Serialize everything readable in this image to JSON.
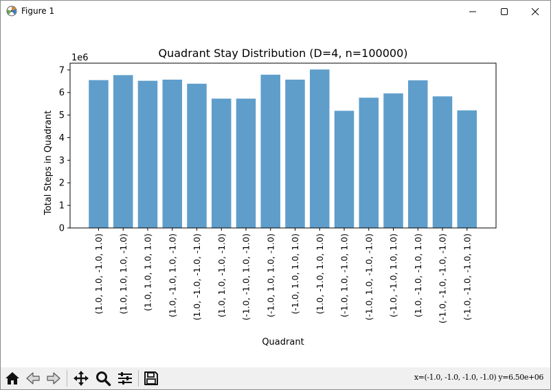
{
  "window": {
    "title": "Figure 1"
  },
  "chart_data": {
    "type": "bar",
    "title": "Quadrant Stay Distribution (D=4, n=100000)",
    "xlabel": "Quadrant",
    "ylabel": "Total Steps in Quadrant",
    "y_scale_label": "1e6",
    "ylim": [
      0,
      7.3
    ],
    "yticks": [
      "0",
      "1",
      "2",
      "3",
      "4",
      "5",
      "6",
      "7"
    ],
    "grid": false,
    "bar_color": "#5f9ecb",
    "categories": [
      "(1.0, 1.0, -1.0, 1.0)",
      "(1.0, 1.0, 1.0, -1.0)",
      "(1.0, 1.0, 1.0, 1.0)",
      "(1.0, -1.0, 1.0, -1.0)",
      "(1.0, -1.0, -1.0, -1.0)",
      "(1.0, 1.0, -1.0, -1.0)",
      "(-1.0, -1.0, 1.0, -1.0)",
      "(-1.0, 1.0, 1.0, -1.0)",
      "(-1.0, 1.0, 1.0, 1.0)",
      "(1.0, -1.0, 1.0, 1.0)",
      "(-1.0, 1.0, -1.0, 1.0)",
      "(-1.0, 1.0, -1.0, -1.0)",
      "(-1.0, -1.0, 1.0, 1.0)",
      "(1.0, -1.0, -1.0, 1.0)",
      "(-1.0, -1.0, -1.0, -1.0)",
      "(-1.0, -1.0, -1.0, 1.0)"
    ],
    "values": [
      6.55,
      6.77,
      6.52,
      6.57,
      6.39,
      5.73,
      5.73,
      6.79,
      6.57,
      7.02,
      5.19,
      5.77,
      5.96,
      6.54,
      5.83,
      5.21
    ]
  },
  "status": {
    "coords": "x=(-1.0, -1.0, -1.0, -1.0) y=6.50e+06"
  },
  "toolbar": {
    "icons": [
      "home-icon",
      "back-arrow-icon",
      "forward-arrow-icon",
      "pan-icon",
      "zoom-icon",
      "configure-subplots-icon",
      "save-icon"
    ]
  }
}
